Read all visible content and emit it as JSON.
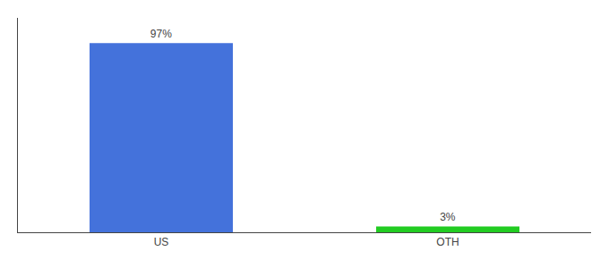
{
  "chart_data": {
    "type": "bar",
    "categories": [
      "US",
      "OTH"
    ],
    "values": [
      97,
      3
    ],
    "colors": [
      "#4472db",
      "#22cc22"
    ],
    "data_labels": true,
    "value_labels": [
      "97%",
      "3%"
    ],
    "ylim": [
      0,
      110
    ],
    "yticks": [],
    "tick_labels": "x",
    "grid": false
  }
}
